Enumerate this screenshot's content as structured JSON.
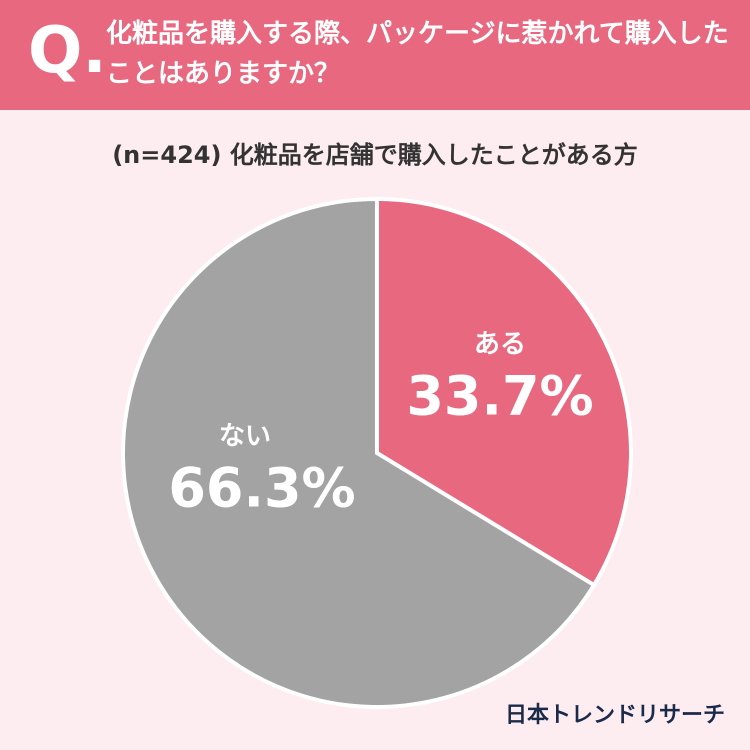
{
  "chart_data": {
    "type": "pie",
    "q_label": "Q.",
    "title": "化粧品を購入する際、パッケージに惹かれて購入したことはありますか？",
    "subtitle": "(n=424) 化粧品を店舗で購入したことがある方",
    "categories": [
      "ある",
      "ない"
    ],
    "values": [
      33.7,
      66.3
    ],
    "value_labels": [
      "33.7%",
      "66.3%"
    ],
    "colors": [
      "#e8697f",
      "#a3a3a3"
    ],
    "source": "日本トレンドリサーチ"
  }
}
